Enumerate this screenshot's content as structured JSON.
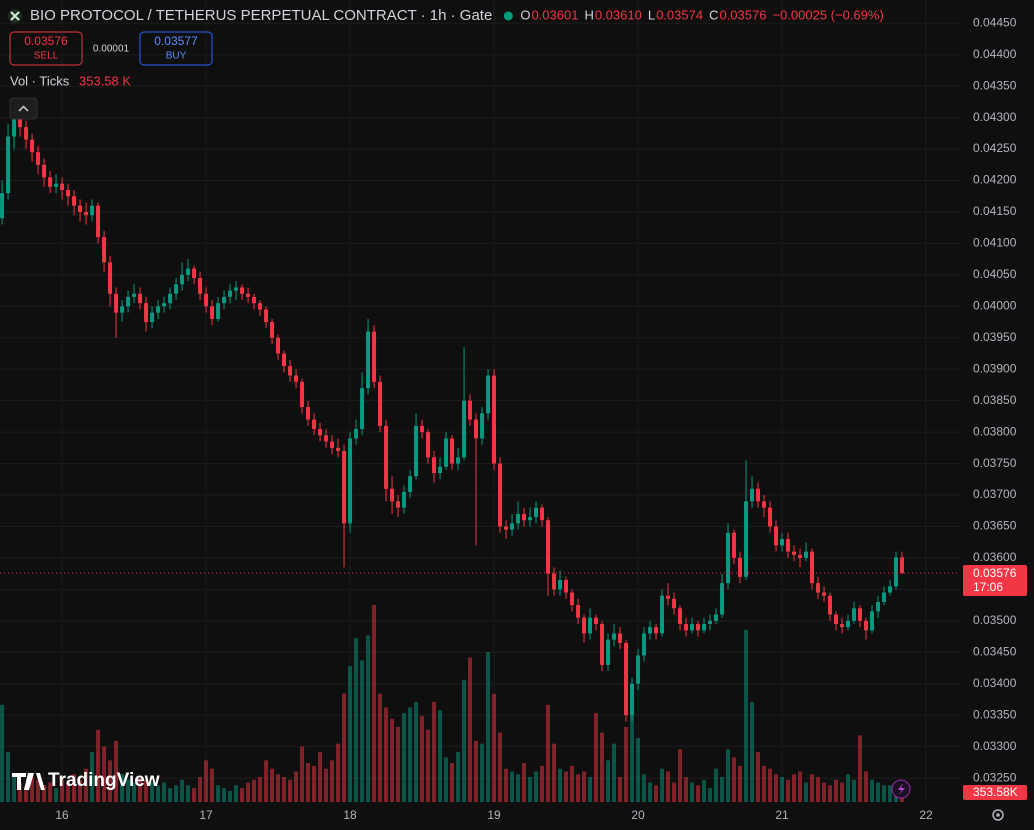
{
  "chart_data": {
    "type": "candlestick",
    "title": "BIO PROTOCOL / TETHERUS PERPETUAL CONTRACT · 1h · Gate",
    "ohlc_legend": [
      {
        "key": "O",
        "value": "0.03601"
      },
      {
        "key": "H",
        "value": "0.03610"
      },
      {
        "key": "L",
        "value": "0.03574"
      },
      {
        "key": "C",
        "value": "0.03576"
      }
    ],
    "change": "−0.00025 (−0.69%)",
    "sell": {
      "price": "0.03576",
      "label": "SELL"
    },
    "spread": "0.00001",
    "buy": {
      "price": "0.03577",
      "label": "BUY"
    },
    "volume_legend": {
      "label": "Vol · Ticks",
      "value": "353.58 K"
    },
    "last_price": {
      "value": 0.03576,
      "label": "0.03576",
      "countdown": "17:06"
    },
    "last_volume_label": "353.58K",
    "watermark": "TradingView",
    "up_color": "#089981",
    "down_color": "#f23645",
    "grid": true,
    "xlim": [
      15.569,
      22.236
    ],
    "xticks": [
      16,
      17,
      18,
      19,
      20,
      21,
      22
    ],
    "ylim": [
      0.03212,
      0.04487
    ],
    "yticks": [
      {
        "value": 0.0325,
        "label": "0.03250"
      },
      {
        "value": 0.033,
        "label": "0.03300"
      },
      {
        "value": 0.0335,
        "label": "0.03350"
      },
      {
        "value": 0.034,
        "label": "0.03400"
      },
      {
        "value": 0.0345,
        "label": "0.03450"
      },
      {
        "value": 0.035,
        "label": "0.03500"
      },
      {
        "value": 0.0355,
        "label": "0.03550"
      },
      {
        "value": 0.036,
        "label": "0.03600"
      },
      {
        "value": 0.0365,
        "label": "0.03650"
      },
      {
        "value": 0.037,
        "label": "0.03700"
      },
      {
        "value": 0.0375,
        "label": "0.03750"
      },
      {
        "value": 0.038,
        "label": "0.03800"
      },
      {
        "value": 0.0385,
        "label": "0.03850"
      },
      {
        "value": 0.039,
        "label": "0.03900"
      },
      {
        "value": 0.0395,
        "label": "0.03950"
      },
      {
        "value": 0.04,
        "label": "0.04000"
      },
      {
        "value": 0.0405,
        "label": "0.04050"
      },
      {
        "value": 0.041,
        "label": "0.04100"
      },
      {
        "value": 0.0415,
        "label": "0.04150"
      },
      {
        "value": 0.042,
        "label": "0.04200"
      },
      {
        "value": 0.0425,
        "label": "0.04250"
      },
      {
        "value": 0.043,
        "label": "0.04300"
      },
      {
        "value": 0.0435,
        "label": "0.04350"
      },
      {
        "value": 0.044,
        "label": "0.04400"
      },
      {
        "value": 0.0445,
        "label": "0.04450"
      }
    ],
    "vlim": [
      0,
      7200
    ],
    "x": [
      15.5833,
      15.625,
      15.6667,
      15.7083,
      15.75,
      15.7917,
      15.8333,
      15.875,
      15.9167,
      15.9583,
      16,
      16.0417,
      16.0833,
      16.125,
      16.1667,
      16.2083,
      16.25,
      16.2917,
      16.3333,
      16.375,
      16.4167,
      16.4583,
      16.5,
      16.5417,
      16.5833,
      16.625,
      16.6667,
      16.7083,
      16.75,
      16.7917,
      16.8333,
      16.875,
      16.9167,
      16.9583,
      17,
      17.0417,
      17.0833,
      17.125,
      17.1667,
      17.2083,
      17.25,
      17.2917,
      17.3333,
      17.375,
      17.4167,
      17.4583,
      17.5,
      17.5417,
      17.5833,
      17.625,
      17.6667,
      17.7083,
      17.75,
      17.7917,
      17.8333,
      17.875,
      17.9167,
      17.9583,
      18,
      18.0417,
      18.0833,
      18.125,
      18.1667,
      18.2083,
      18.25,
      18.2917,
      18.3333,
      18.375,
      18.4167,
      18.4583,
      18.5,
      18.5417,
      18.5833,
      18.625,
      18.6667,
      18.7083,
      18.75,
      18.7917,
      18.8333,
      18.875,
      18.9167,
      18.9583,
      19,
      19.0417,
      19.0833,
      19.125,
      19.1667,
      19.2083,
      19.25,
      19.2917,
      19.3333,
      19.375,
      19.4167,
      19.4583,
      19.5,
      19.5417,
      19.5833,
      19.625,
      19.6667,
      19.7083,
      19.75,
      19.7917,
      19.8333,
      19.875,
      19.9167,
      19.9583,
      20,
      20.0417,
      20.0833,
      20.125,
      20.1667,
      20.2083,
      20.25,
      20.2917,
      20.3333,
      20.375,
      20.4167,
      20.4583,
      20.5,
      20.5417,
      20.5833,
      20.625,
      20.6667,
      20.7083,
      20.75,
      20.7917,
      20.8333,
      20.875,
      20.9167,
      20.9583,
      21,
      21.0417,
      21.0833,
      21.125,
      21.1667,
      21.2083,
      21.25,
      21.2917,
      21.3333,
      21.375,
      21.4167,
      21.4583,
      21.5,
      21.5417,
      21.5833,
      21.625,
      21.6667,
      21.7083,
      21.75,
      21.7917,
      21.8333
    ],
    "candles": [
      [
        0.0414,
        0.042,
        0.0413,
        0.0418
      ],
      [
        0.0418,
        0.0429,
        0.0417,
        0.0427
      ],
      [
        0.0427,
        0.0432,
        0.0425,
        0.043
      ],
      [
        0.043,
        0.0431,
        0.0427,
        0.04285
      ],
      [
        0.04285,
        0.04295,
        0.0425,
        0.04265
      ],
      [
        0.04265,
        0.04275,
        0.0423,
        0.04245
      ],
      [
        0.04245,
        0.04255,
        0.0421,
        0.04225
      ],
      [
        0.04225,
        0.04235,
        0.0419,
        0.04205
      ],
      [
        0.04205,
        0.04215,
        0.0418,
        0.0419
      ],
      [
        0.0419,
        0.0421,
        0.0418,
        0.04195
      ],
      [
        0.04195,
        0.04205,
        0.0417,
        0.04185
      ],
      [
        0.04185,
        0.04195,
        0.0416,
        0.04175
      ],
      [
        0.04175,
        0.04185,
        0.04145,
        0.0416
      ],
      [
        0.0416,
        0.0417,
        0.04135,
        0.0415
      ],
      [
        0.0415,
        0.04165,
        0.0413,
        0.04145
      ],
      [
        0.04145,
        0.0417,
        0.04135,
        0.0416
      ],
      [
        0.0416,
        0.04165,
        0.041,
        0.0411
      ],
      [
        0.0411,
        0.0412,
        0.04055,
        0.0407
      ],
      [
        0.0407,
        0.0408,
        0.04,
        0.0402
      ],
      [
        0.0402,
        0.0403,
        0.0395,
        0.0399
      ],
      [
        0.0399,
        0.0401,
        0.03975,
        0.04
      ],
      [
        0.04,
        0.04025,
        0.0399,
        0.04015
      ],
      [
        0.04015,
        0.04035,
        0.04005,
        0.0402
      ],
      [
        0.0402,
        0.0403,
        0.03995,
        0.04005
      ],
      [
        0.04005,
        0.04015,
        0.0396,
        0.03975
      ],
      [
        0.03975,
        0.04,
        0.03965,
        0.0399
      ],
      [
        0.0399,
        0.0401,
        0.0398,
        0.04
      ],
      [
        0.04,
        0.04015,
        0.0399,
        0.04005
      ],
      [
        0.04005,
        0.0403,
        0.03995,
        0.0402
      ],
      [
        0.0402,
        0.04045,
        0.0401,
        0.04035
      ],
      [
        0.04035,
        0.0407,
        0.04025,
        0.0405
      ],
      [
        0.0405,
        0.04075,
        0.0404,
        0.0406
      ],
      [
        0.0406,
        0.04065,
        0.04035,
        0.04045
      ],
      [
        0.04045,
        0.04055,
        0.0401,
        0.0402
      ],
      [
        0.0402,
        0.0403,
        0.0399,
        0.04
      ],
      [
        0.04,
        0.0401,
        0.0397,
        0.0398
      ],
      [
        0.0398,
        0.04015,
        0.03975,
        0.04005
      ],
      [
        0.04005,
        0.04025,
        0.03995,
        0.04015
      ],
      [
        0.04015,
        0.04035,
        0.04005,
        0.04025
      ],
      [
        0.04025,
        0.0404,
        0.0401,
        0.0403
      ],
      [
        0.0403,
        0.04035,
        0.0401,
        0.0402
      ],
      [
        0.0402,
        0.0403,
        0.04005,
        0.04015
      ],
      [
        0.04015,
        0.0402,
        0.03995,
        0.04005
      ],
      [
        0.04005,
        0.0401,
        0.03985,
        0.03995
      ],
      [
        0.03995,
        0.04,
        0.03965,
        0.03975
      ],
      [
        0.03975,
        0.0398,
        0.0394,
        0.0395
      ],
      [
        0.0395,
        0.03955,
        0.03915,
        0.03925
      ],
      [
        0.03925,
        0.0393,
        0.03895,
        0.03905
      ],
      [
        0.03905,
        0.03915,
        0.0388,
        0.0389
      ],
      [
        0.0389,
        0.039,
        0.0387,
        0.0388
      ],
      [
        0.0388,
        0.03885,
        0.0383,
        0.0384
      ],
      [
        0.0384,
        0.0385,
        0.0381,
        0.0382
      ],
      [
        0.0382,
        0.0383,
        0.03795,
        0.03805
      ],
      [
        0.03805,
        0.03815,
        0.03785,
        0.03795
      ],
      [
        0.03795,
        0.03805,
        0.03775,
        0.03785
      ],
      [
        0.03785,
        0.03795,
        0.03765,
        0.03775
      ],
      [
        0.03775,
        0.0379,
        0.0376,
        0.0377
      ],
      [
        0.0377,
        0.0378,
        0.03585,
        0.03655
      ],
      [
        0.03655,
        0.038,
        0.0364,
        0.0379
      ],
      [
        0.0379,
        0.0382,
        0.0378,
        0.03805
      ],
      [
        0.03805,
        0.03895,
        0.03795,
        0.0387
      ],
      [
        0.0387,
        0.0398,
        0.0386,
        0.0396
      ],
      [
        0.0396,
        0.0397,
        0.0387,
        0.0388
      ],
      [
        0.0388,
        0.0389,
        0.038,
        0.0381
      ],
      [
        0.0381,
        0.0382,
        0.0369,
        0.0371
      ],
      [
        0.0371,
        0.0373,
        0.0367,
        0.0369
      ],
      [
        0.0369,
        0.037,
        0.03665,
        0.0368
      ],
      [
        0.0368,
        0.03715,
        0.0367,
        0.03705
      ],
      [
        0.03705,
        0.0374,
        0.03695,
        0.0373
      ],
      [
        0.0373,
        0.0383,
        0.03725,
        0.0381
      ],
      [
        0.0381,
        0.0382,
        0.0379,
        0.038
      ],
      [
        0.038,
        0.03805,
        0.0375,
        0.0376
      ],
      [
        0.0376,
        0.0377,
        0.0372,
        0.03735
      ],
      [
        0.03735,
        0.0376,
        0.03725,
        0.03745
      ],
      [
        0.03745,
        0.038,
        0.0374,
        0.0379
      ],
      [
        0.0379,
        0.03795,
        0.0374,
        0.0375
      ],
      [
        0.0375,
        0.03775,
        0.0374,
        0.0376
      ],
      [
        0.0376,
        0.03935,
        0.03755,
        0.0385
      ],
      [
        0.0385,
        0.0386,
        0.0381,
        0.0382
      ],
      [
        0.0382,
        0.0383,
        0.0362,
        0.0379
      ],
      [
        0.0379,
        0.0384,
        0.0378,
        0.0383
      ],
      [
        0.0383,
        0.039,
        0.0382,
        0.0389
      ],
      [
        0.0389,
        0.039,
        0.0374,
        0.0375
      ],
      [
        0.0375,
        0.0376,
        0.0364,
        0.0365
      ],
      [
        0.0365,
        0.0366,
        0.0363,
        0.03645
      ],
      [
        0.03645,
        0.0367,
        0.03635,
        0.03655
      ],
      [
        0.03655,
        0.0369,
        0.03645,
        0.0367
      ],
      [
        0.0367,
        0.0368,
        0.0365,
        0.0366
      ],
      [
        0.0366,
        0.0368,
        0.0365,
        0.03665
      ],
      [
        0.03665,
        0.0369,
        0.03655,
        0.0368
      ],
      [
        0.0368,
        0.03685,
        0.0365,
        0.0366
      ],
      [
        0.0366,
        0.03665,
        0.0354,
        0.03575
      ],
      [
        0.03575,
        0.03585,
        0.0354,
        0.0355
      ],
      [
        0.0355,
        0.0358,
        0.0354,
        0.03565
      ],
      [
        0.03565,
        0.0357,
        0.03535,
        0.03545
      ],
      [
        0.03545,
        0.0355,
        0.03515,
        0.03525
      ],
      [
        0.03525,
        0.03535,
        0.03495,
        0.03505
      ],
      [
        0.03505,
        0.0351,
        0.03465,
        0.0348
      ],
      [
        0.0348,
        0.0352,
        0.0347,
        0.03505
      ],
      [
        0.03505,
        0.0351,
        0.03485,
        0.03495
      ],
      [
        0.03495,
        0.035,
        0.0342,
        0.0343
      ],
      [
        0.0343,
        0.0348,
        0.0342,
        0.0347
      ],
      [
        0.0347,
        0.03495,
        0.0346,
        0.0348
      ],
      [
        0.0348,
        0.0349,
        0.03455,
        0.03465
      ],
      [
        0.03465,
        0.0347,
        0.0334,
        0.0335
      ],
      [
        0.0335,
        0.0341,
        0.0334,
        0.034
      ],
      [
        0.034,
        0.03455,
        0.0339,
        0.03445
      ],
      [
        0.03445,
        0.0349,
        0.03435,
        0.0348
      ],
      [
        0.0348,
        0.035,
        0.0347,
        0.0349
      ],
      [
        0.0349,
        0.03495,
        0.0347,
        0.0348
      ],
      [
        0.0348,
        0.0355,
        0.03475,
        0.0354
      ],
      [
        0.0354,
        0.0356,
        0.03525,
        0.03535
      ],
      [
        0.03535,
        0.03545,
        0.0351,
        0.0352
      ],
      [
        0.0352,
        0.03525,
        0.03485,
        0.03495
      ],
      [
        0.03495,
        0.03505,
        0.03475,
        0.03485
      ],
      [
        0.03485,
        0.03505,
        0.0348,
        0.03495
      ],
      [
        0.03495,
        0.035,
        0.03475,
        0.03485
      ],
      [
        0.03485,
        0.03505,
        0.0348,
        0.03495
      ],
      [
        0.03495,
        0.0351,
        0.03485,
        0.035
      ],
      [
        0.035,
        0.0352,
        0.03495,
        0.0351
      ],
      [
        0.0351,
        0.03575,
        0.03505,
        0.0356
      ],
      [
        0.0356,
        0.03655,
        0.0355,
        0.0364
      ],
      [
        0.0364,
        0.03645,
        0.0359,
        0.036
      ],
      [
        0.036,
        0.0361,
        0.0356,
        0.0357
      ],
      [
        0.0357,
        0.03755,
        0.03565,
        0.0369
      ],
      [
        0.0369,
        0.0373,
        0.0368,
        0.0371
      ],
      [
        0.0371,
        0.0372,
        0.0368,
        0.0369
      ],
      [
        0.0369,
        0.037,
        0.03665,
        0.0368
      ],
      [
        0.0368,
        0.0369,
        0.0364,
        0.0365
      ],
      [
        0.0365,
        0.0366,
        0.0361,
        0.0362
      ],
      [
        0.0362,
        0.0364,
        0.0361,
        0.0363
      ],
      [
        0.0363,
        0.0364,
        0.036,
        0.0361
      ],
      [
        0.0361,
        0.0362,
        0.03595,
        0.03605
      ],
      [
        0.03605,
        0.03615,
        0.03585,
        0.036
      ],
      [
        0.036,
        0.03625,
        0.03595,
        0.0361
      ],
      [
        0.0361,
        0.03615,
        0.0355,
        0.0356
      ],
      [
        0.0356,
        0.0357,
        0.03535,
        0.03545
      ],
      [
        0.03545,
        0.03555,
        0.0353,
        0.0354
      ],
      [
        0.0354,
        0.03545,
        0.035,
        0.0351
      ],
      [
        0.0351,
        0.03515,
        0.03485,
        0.03495
      ],
      [
        0.03495,
        0.03505,
        0.0348,
        0.0349
      ],
      [
        0.0349,
        0.0351,
        0.03485,
        0.035
      ],
      [
        0.035,
        0.0353,
        0.03495,
        0.0352
      ],
      [
        0.0352,
        0.03525,
        0.0349,
        0.035
      ],
      [
        0.035,
        0.03505,
        0.0347,
        0.03485
      ],
      [
        0.03485,
        0.03525,
        0.0348,
        0.03515
      ],
      [
        0.03515,
        0.0354,
        0.03505,
        0.0353
      ],
      [
        0.0353,
        0.03555,
        0.03525,
        0.03545
      ],
      [
        0.03545,
        0.03565,
        0.0354,
        0.03555
      ],
      [
        0.03555,
        0.0361,
        0.0355,
        0.03601
      ],
      [
        0.03601,
        0.0361,
        0.03574,
        0.03576
      ]
    ],
    "volumes": [
      3500,
      1800,
      900,
      700,
      600,
      900,
      800,
      600,
      700,
      500,
      900,
      700,
      1000,
      800,
      1200,
      1800,
      2600,
      2000,
      1500,
      2200,
      1000,
      800,
      700,
      900,
      800,
      700,
      600,
      700,
      500,
      600,
      800,
      600,
      500,
      900,
      1500,
      1200,
      600,
      500,
      400,
      600,
      500,
      700,
      800,
      900,
      1500,
      1200,
      1000,
      900,
      800,
      1100,
      2000,
      1400,
      1300,
      1800,
      1200,
      1500,
      2100,
      3900,
      4900,
      5900,
      5100,
      6000,
      7100,
      3900,
      3400,
      3000,
      2700,
      3200,
      3400,
      3600,
      3100,
      2600,
      3600,
      3300,
      1600,
      1400,
      1800,
      4400,
      5200,
      2200,
      2100,
      5400,
      3900,
      2500,
      1200,
      1100,
      1000,
      1400,
      900,
      1100,
      1300,
      3500,
      2100,
      1200,
      1100,
      1300,
      1000,
      1100,
      900,
      3200,
      2500,
      1500,
      2100,
      900,
      2700,
      3300,
      2300,
      1000,
      700,
      600,
      1200,
      1100,
      700,
      1900,
      900,
      700,
      600,
      800,
      500,
      1200,
      900,
      1900,
      1600,
      1300,
      6200,
      3600,
      1800,
      1300,
      1200,
      1000,
      900,
      800,
      1000,
      1100,
      700,
      1000,
      900,
      700,
      600,
      800,
      700,
      1000,
      800,
      2400,
      1100,
      800,
      700,
      600,
      600,
      500,
      353.58
    ]
  }
}
